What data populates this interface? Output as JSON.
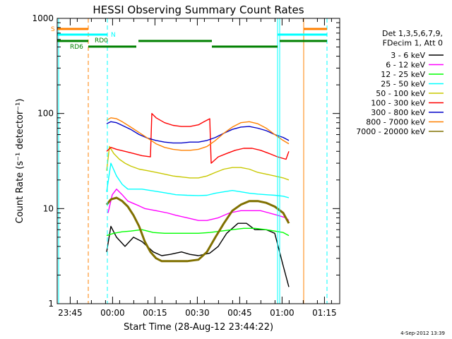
{
  "chart_data": {
    "type": "line",
    "title": "HESSI Observing Summary Count Rates",
    "xlabel": "Start Time (28-Aug-12 23:44:22)",
    "ylabel": "Count Rate (s⁻¹ detector⁻¹)",
    "y_scale": "log",
    "ylim": [
      1,
      1000
    ],
    "x_unit": "minutes after 28-Aug-12 23:44:22",
    "xlim": [
      -4,
      96
    ],
    "x_ticks": [
      {
        "value": 0.6,
        "label": "23:45"
      },
      {
        "value": 15.6,
        "label": "00:00"
      },
      {
        "value": 30.6,
        "label": "00:15"
      },
      {
        "value": 45.6,
        "label": "00:30"
      },
      {
        "value": 60.6,
        "label": "00:45"
      },
      {
        "value": 75.6,
        "label": "01:00"
      },
      {
        "value": 90.6,
        "label": "01:15"
      }
    ],
    "y_ticks": [
      {
        "value": 1,
        "label": "1"
      },
      {
        "value": 10,
        "label": "10"
      },
      {
        "value": 100,
        "label": "100"
      },
      {
        "value": 1000,
        "label": "1000"
      }
    ],
    "legend": {
      "placement": "top-right",
      "header": [
        "Det 1,3,5,6,7,9,",
        "FDecim 1, Att 0"
      ]
    },
    "series": [
      {
        "name": "3 - 6 keV",
        "color": "#000000",
        "x": [
          13.5,
          15,
          17,
          20,
          23,
          26,
          30,
          33,
          36,
          40,
          43,
          46,
          50,
          53,
          56,
          60,
          63,
          66,
          70,
          73,
          76,
          78
        ],
        "y": [
          3.5,
          6.5,
          5,
          4,
          5,
          4.5,
          3.5,
          3.2,
          3.3,
          3.5,
          3.3,
          3.2,
          3.4,
          4,
          5.5,
          7,
          7,
          6,
          6,
          5.5,
          2.5,
          1.5
        ]
      },
      {
        "name": "6 - 12 keV",
        "color": "#ff00ff",
        "x": [
          14,
          15.5,
          17,
          19,
          21,
          24,
          27,
          31,
          35,
          38,
          42,
          46,
          49,
          53,
          57,
          61,
          64,
          68,
          71,
          74,
          77,
          78
        ],
        "y": [
          9,
          14,
          16,
          14,
          12,
          11,
          10,
          9.5,
          9,
          8.5,
          8,
          7.5,
          7.5,
          8,
          9,
          9.5,
          9.5,
          9.5,
          9,
          8.5,
          8,
          7.5
        ]
      },
      {
        "name": "12 - 25 keV",
        "color": "#00ff00",
        "x": [
          13.5,
          16,
          19,
          22,
          26,
          30,
          34,
          38,
          42,
          46,
          50,
          54,
          58,
          62,
          66,
          70,
          73,
          76,
          78
        ],
        "y": [
          5.2,
          5.5,
          5.7,
          5.8,
          6,
          5.6,
          5.5,
          5.5,
          5.5,
          5.5,
          5.6,
          5.8,
          6,
          6.2,
          6.2,
          6,
          5.8,
          5.6,
          5.2
        ]
      },
      {
        "name": "25 - 50 keV",
        "color": "#00ffff",
        "x": [
          13.5,
          15,
          17,
          19,
          21,
          23,
          26,
          29,
          32,
          35,
          38,
          42,
          46,
          49,
          52,
          55,
          58,
          61,
          64,
          67,
          70,
          73,
          76,
          78
        ],
        "y": [
          15,
          30,
          22,
          18,
          16,
          16,
          16,
          15.5,
          15,
          14.5,
          14,
          13.8,
          13.7,
          13.8,
          14.5,
          15,
          15.5,
          15,
          14.5,
          14.2,
          14,
          13.8,
          13.5,
          13
        ]
      },
      {
        "name": "50 - 100 keV",
        "color": "#c8c800",
        "x": [
          13.5,
          14.5,
          16,
          18,
          20,
          22,
          25,
          28,
          31,
          34,
          37,
          40,
          43,
          46,
          49,
          52,
          55,
          58,
          61,
          64,
          67,
          70,
          73,
          76,
          78
        ],
        "y": [
          25,
          45,
          38,
          33,
          30,
          28,
          26,
          25,
          24,
          23,
          22,
          21.5,
          21,
          21,
          22,
          24,
          26,
          27,
          27,
          26,
          24,
          23,
          22,
          21,
          20
        ]
      },
      {
        "name": "100 - 300 keV",
        "color": "#ff0000",
        "x": [
          13.5,
          15,
          17,
          20,
          23,
          26,
          29,
          29.5,
          31,
          34,
          37,
          40,
          43,
          46,
          48,
          50,
          50.5,
          53,
          56,
          59,
          62,
          65,
          68,
          71,
          74,
          77,
          78
        ],
        "y": [
          40,
          44,
          42,
          40,
          38,
          36,
          35,
          100,
          90,
          80,
          75,
          73,
          73,
          76,
          82,
          88,
          30,
          35,
          38,
          41,
          43,
          43,
          41,
          38,
          35,
          33,
          40
        ]
      },
      {
        "name": "300 - 800 keV",
        "color": "#0000c8",
        "x": [
          13.5,
          15,
          17,
          19,
          22,
          25,
          28,
          31,
          34,
          37,
          40,
          43,
          46,
          49,
          52,
          55,
          58,
          61,
          64,
          67,
          70,
          73,
          76,
          78
        ],
        "y": [
          78,
          82,
          80,
          75,
          68,
          60,
          55,
          52,
          50,
          49,
          49,
          50,
          50,
          52,
          56,
          62,
          68,
          72,
          73,
          70,
          66,
          60,
          56,
          52
        ]
      },
      {
        "name": "800 - 7000 keV",
        "color": "#ff8000",
        "x": [
          13.5,
          15,
          17,
          19,
          22,
          25,
          28,
          31,
          34,
          37,
          40,
          43,
          46,
          49,
          52,
          55,
          58,
          61,
          64,
          67,
          70,
          73,
          76,
          78
        ],
        "y": [
          85,
          90,
          88,
          82,
          72,
          63,
          55,
          48,
          44,
          42,
          41,
          41,
          42,
          45,
          52,
          62,
          72,
          80,
          82,
          78,
          70,
          60,
          52,
          48
        ]
      },
      {
        "name": "7000 - 20000 keV",
        "color": "#807000",
        "x": [
          13.5,
          15,
          17,
          19,
          21,
          23,
          25,
          27,
          29,
          31,
          33,
          35,
          38,
          42,
          46,
          49,
          52,
          55,
          58,
          61,
          64,
          67,
          70,
          73,
          76,
          78
        ],
        "y": [
          11,
          12.5,
          13,
          12,
          10.5,
          8.5,
          6.5,
          4.5,
          3.5,
          3,
          2.8,
          2.8,
          2.8,
          2.8,
          2.9,
          3.5,
          5,
          7,
          9.5,
          11,
          12,
          12,
          11.5,
          10.5,
          9,
          7
        ]
      }
    ],
    "annotations": {
      "attenuator_label": "S",
      "night_label": "N",
      "decimation_labels": [
        "RD0",
        "RD6"
      ],
      "date_stamp": "4-Sep-2012 13:39"
    }
  }
}
